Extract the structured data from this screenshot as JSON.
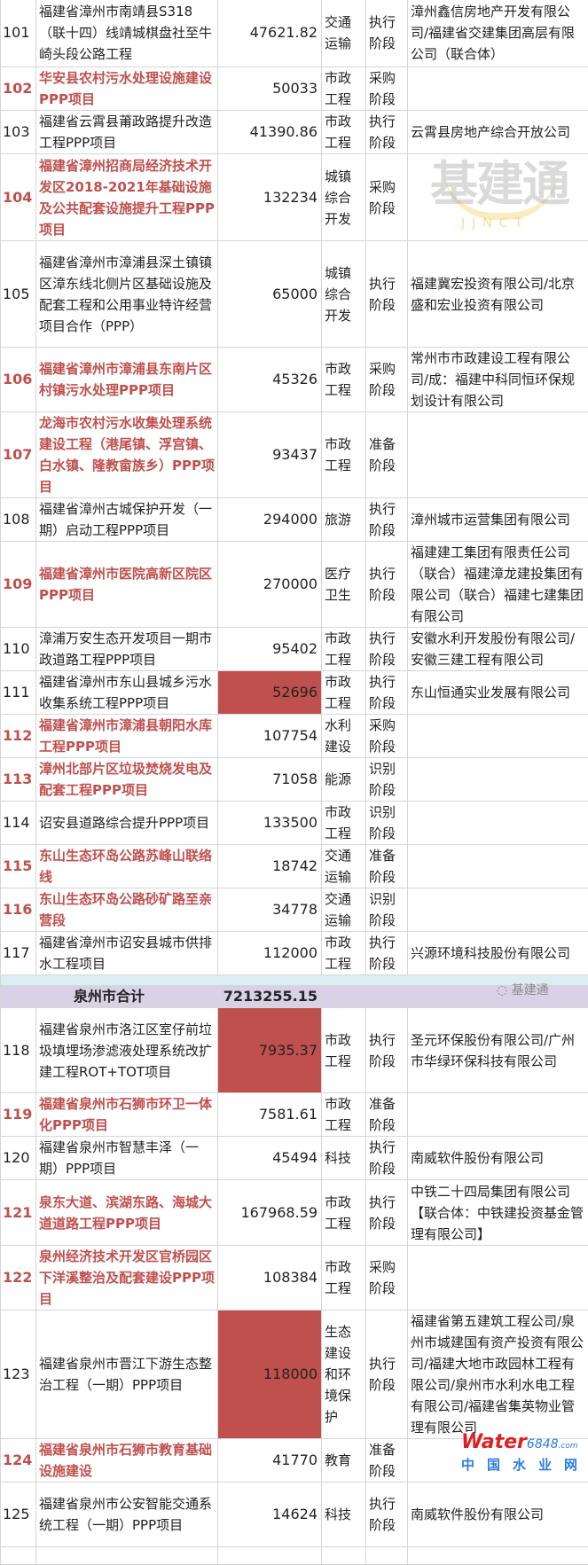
{
  "colors": {
    "highlight_text": "#c0504d",
    "highlight_fill": "#c0504d",
    "subtotal_bg": "#d9d2e6",
    "gap_bg": "#dbeef3"
  },
  "rows_a": [
    {
      "no": "101",
      "name": "福建省漳州市南靖县S318（联十四）线靖城棋盘社至牛崎头段公路工程",
      "amount": "47621.82",
      "industry": "交通运输",
      "stage": "执行阶段",
      "company": "漳州鑫信房地产开发有限公司/福建省交建集团高层有限公司（联合体）",
      "red": false,
      "fill": false
    },
    {
      "no": "102",
      "name": "华安县农村污水处理设施建设PPP项目",
      "amount": "50033",
      "industry": "市政工程",
      "stage": "采购阶段",
      "company": "",
      "red": true,
      "fill": false
    },
    {
      "no": "103",
      "name": "福建省云霄县莆政路提升改造工程PPP项目",
      "amount": "41390.86",
      "industry": "市政工程",
      "stage": "执行阶段",
      "company": "云霄县房地产综合开放公司",
      "red": false,
      "fill": false
    },
    {
      "no": "104",
      "name": "福建省漳州招商局经济技术开发区2018-2021年基础设施及公共配套设施提升工程PPP项目",
      "amount": "132234",
      "industry": "城镇综合开发",
      "stage": "采购阶段",
      "company": "",
      "red": true,
      "fill": false
    },
    {
      "no": "105",
      "name": "福建省漳州市漳浦县深土镇镇区漳东线北侧片区基础设施及配套工程和公用事业特许经营项目合作（PPP）",
      "amount": "65000",
      "industry": "城镇综合开发",
      "stage": "执行阶段",
      "company": "福建冀宏投资有限公司/北京盛和宏业投资有限公司",
      "red": false,
      "fill": false
    },
    {
      "no": "106",
      "name": "福建省漳州市漳浦县东南片区村镇污水处理PPP项目",
      "amount": "45326",
      "industry": "市政工程",
      "stage": "采购阶段",
      "company": "常州市市政建设工程有限公司/成：福建中科同恒环保规划设计有限公司",
      "red": true,
      "fill": false
    },
    {
      "no": "107",
      "name": "龙海市农村污水收集处理系统建设工程（港尾镇、浮宫镇、白水镇、隆教畲族乡）PPP项目",
      "amount": "93437",
      "industry": "市政工程",
      "stage": "准备阶段",
      "company": "",
      "red": true,
      "fill": false
    },
    {
      "no": "108",
      "name": "福建省漳州古城保护开发（一期）启动工程PPP项目",
      "amount": "294000",
      "industry": "旅游",
      "stage": "执行阶段",
      "company": "漳州城市运营集团有限公司",
      "red": false,
      "fill": false
    },
    {
      "no": "109",
      "name": "福建省漳州市医院高新区院区PPP项目",
      "amount": "270000",
      "industry": "医疗卫生",
      "stage": "执行阶段",
      "company": "福建建工集团有限责任公司（联合）福建漳龙建投集团有限公司（联合）福建七建集团有限公司",
      "red": true,
      "fill": false
    },
    {
      "no": "110",
      "name": "漳浦万安生态开发项目一期市政道路工程PPP项目",
      "amount": "95402",
      "industry": "市政工程",
      "stage": "执行阶段",
      "company": "安徽水利开发股份有限公司/安徽三建工程有限公司",
      "red": false,
      "fill": false
    },
    {
      "no": "111",
      "name": "福建省漳州市东山县城乡污水收集系统工程PPP项目",
      "amount": "52696",
      "industry": "市政工程",
      "stage": "执行阶段",
      "company": "东山恒通实业发展有限公司",
      "red": false,
      "fill": true
    },
    {
      "no": "112",
      "name": "福建省漳州市漳浦县朝阳水库工程PPP项目",
      "amount": "107754",
      "industry": "水利建设",
      "stage": "采购阶段",
      "company": "",
      "red": true,
      "fill": false
    },
    {
      "no": "113",
      "name": "漳州北部片区垃圾焚烧发电及配套工程PPP项目",
      "amount": "71058",
      "industry": "能源",
      "stage": "识别阶段",
      "company": "",
      "red": true,
      "fill": false
    },
    {
      "no": "114",
      "name": "诏安县道路综合提升PPP项目",
      "amount": "133500",
      "industry": "市政工程",
      "stage": "识别阶段",
      "company": "",
      "red": false,
      "fill": false
    },
    {
      "no": "115",
      "name": "东山生态环岛公路苏峰山联络线",
      "amount": "18742",
      "industry": "交通运输",
      "stage": "准备阶段",
      "company": "",
      "red": true,
      "fill": false
    },
    {
      "no": "116",
      "name": "东山生态环岛公路砂矿路至亲营段",
      "amount": "34778",
      "industry": "交通运输",
      "stage": "识别阶段",
      "company": "",
      "red": true,
      "fill": false
    },
    {
      "no": "117",
      "name": "福建省漳州市诏安县城市供排水工程项目",
      "amount": "112000",
      "industry": "市政工程",
      "stage": "执行阶段",
      "company": "兴源环境科技股份有限公司",
      "red": false,
      "fill": false
    }
  ],
  "subtotal": {
    "label": "泉州市合计",
    "amount": "7213255.15"
  },
  "rows_b": [
    {
      "no": "118",
      "name": "福建省泉州市洛江区室仔前垃圾填埋场渗滤液处理系统改扩建工程ROT+TOT项目",
      "amount": "7935.37",
      "industry": "市政工程",
      "stage": "执行阶段",
      "company": "圣元环保股份有限公司/广州市华绿环保科技有限公司",
      "red": false,
      "fill": true
    },
    {
      "no": "119",
      "name": "福建省泉州市石狮市环卫一体化PPP项目",
      "amount": "7581.61",
      "industry": "市政工程",
      "stage": "准备阶段",
      "company": "",
      "red": true,
      "fill": false
    },
    {
      "no": "120",
      "name": "福建省泉州市智慧丰泽（一期）PPP项目",
      "amount": "45494",
      "industry": "科技",
      "stage": "执行阶段",
      "company": "南威软件股份有限公司",
      "red": false,
      "fill": false
    },
    {
      "no": "121",
      "name": "泉东大道、滨湖东路、海城大道道路工程PPP项目",
      "amount": "167968.59",
      "industry": "市政工程",
      "stage": "执行阶段",
      "company": "中铁二十四局集团有限公司【联合体：中铁建投资基金管理有限公司】",
      "red": true,
      "fill": false
    },
    {
      "no": "122",
      "name": "泉州经济技术开发区官桥园区下洋溪整治及配套建设PPP项目",
      "amount": "108384",
      "industry": "市政工程",
      "stage": "采购阶段",
      "company": "",
      "red": true,
      "fill": false
    },
    {
      "no": "123",
      "name": "福建省泉州市晋江下游生态整治工程（一期）PPP项目",
      "amount": "118000",
      "industry": "生态建设和环境保护",
      "stage": "执行阶段",
      "company": "福建省第五建筑工程公司/泉州市城建国有资产投资有限公司/福建大地市政园林工程有限公司/泉州市水利水电工程有限公司/福建省集英物业管理有限公司",
      "red": false,
      "fill": true
    },
    {
      "no": "124",
      "name": "福建省泉州市石狮市教育基础设施建设",
      "amount": "41770",
      "industry": "教育",
      "stage": "准备阶段",
      "company": "",
      "red": true,
      "fill": false
    },
    {
      "no": "125",
      "name": "福建省泉州市公安智能交通系统工程（一期）PPP项目",
      "amount": "14624",
      "industry": "科技",
      "stage": "执行阶段",
      "company": "南威软件股份有限公司",
      "red": false,
      "fill": false
    }
  ],
  "watermarks": {
    "main": "基建通",
    "main_sub": "JJNCT",
    "wechat": "基建通",
    "logo_en": "Water",
    "logo_num": "6848",
    "logo_com": ".com",
    "logo_cn": "中国水业网"
  }
}
